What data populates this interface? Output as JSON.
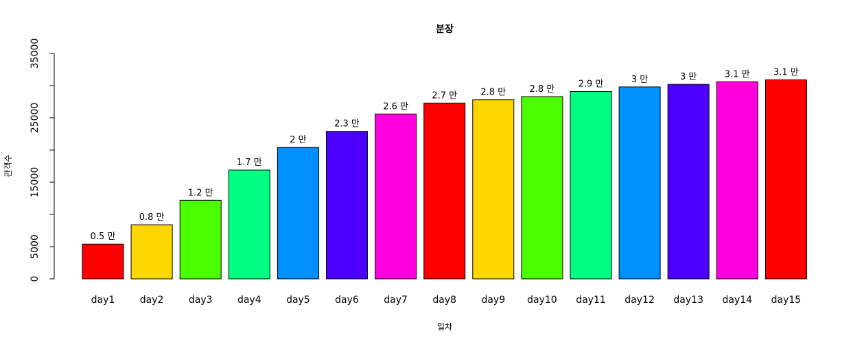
{
  "chart_data": {
    "type": "bar",
    "title": "분장",
    "xlabel": "일차",
    "ylabel": "관객수",
    "categories": [
      "day1",
      "day2",
      "day3",
      "day4",
      "day5",
      "day6",
      "day7",
      "day8",
      "day9",
      "day10",
      "day11",
      "day12",
      "day13",
      "day14",
      "day15"
    ],
    "values": [
      5400,
      8400,
      12200,
      16900,
      20400,
      22900,
      25600,
      27300,
      27800,
      28300,
      29100,
      29800,
      30200,
      30600,
      30900
    ],
    "data_labels": [
      "0.5 만",
      "0.8 만",
      "1.2 만",
      "1.7 만",
      "2 만",
      "2.3 만",
      "2.6 만",
      "2.7 만",
      "2.8 만",
      "2.8 만",
      "2.9 만",
      "3 만",
      "3 만",
      "3.1 만",
      "3.1 만"
    ],
    "colors": [
      "#FF0000",
      "#FFD700",
      "#4CFF00",
      "#00FF80",
      "#0090FF",
      "#4C00FF",
      "#FF00DE",
      "#FF0000",
      "#FFD700",
      "#4CFF00",
      "#00FF80",
      "#0090FF",
      "#4C00FF",
      "#FF00DE",
      "#FF0000"
    ],
    "ylim": [
      0,
      35000
    ],
    "yticks": [
      0,
      5000,
      15000,
      25000,
      35000
    ],
    "yticks_minor": [
      10000,
      20000,
      30000
    ],
    "grid": false,
    "legend": "none"
  }
}
